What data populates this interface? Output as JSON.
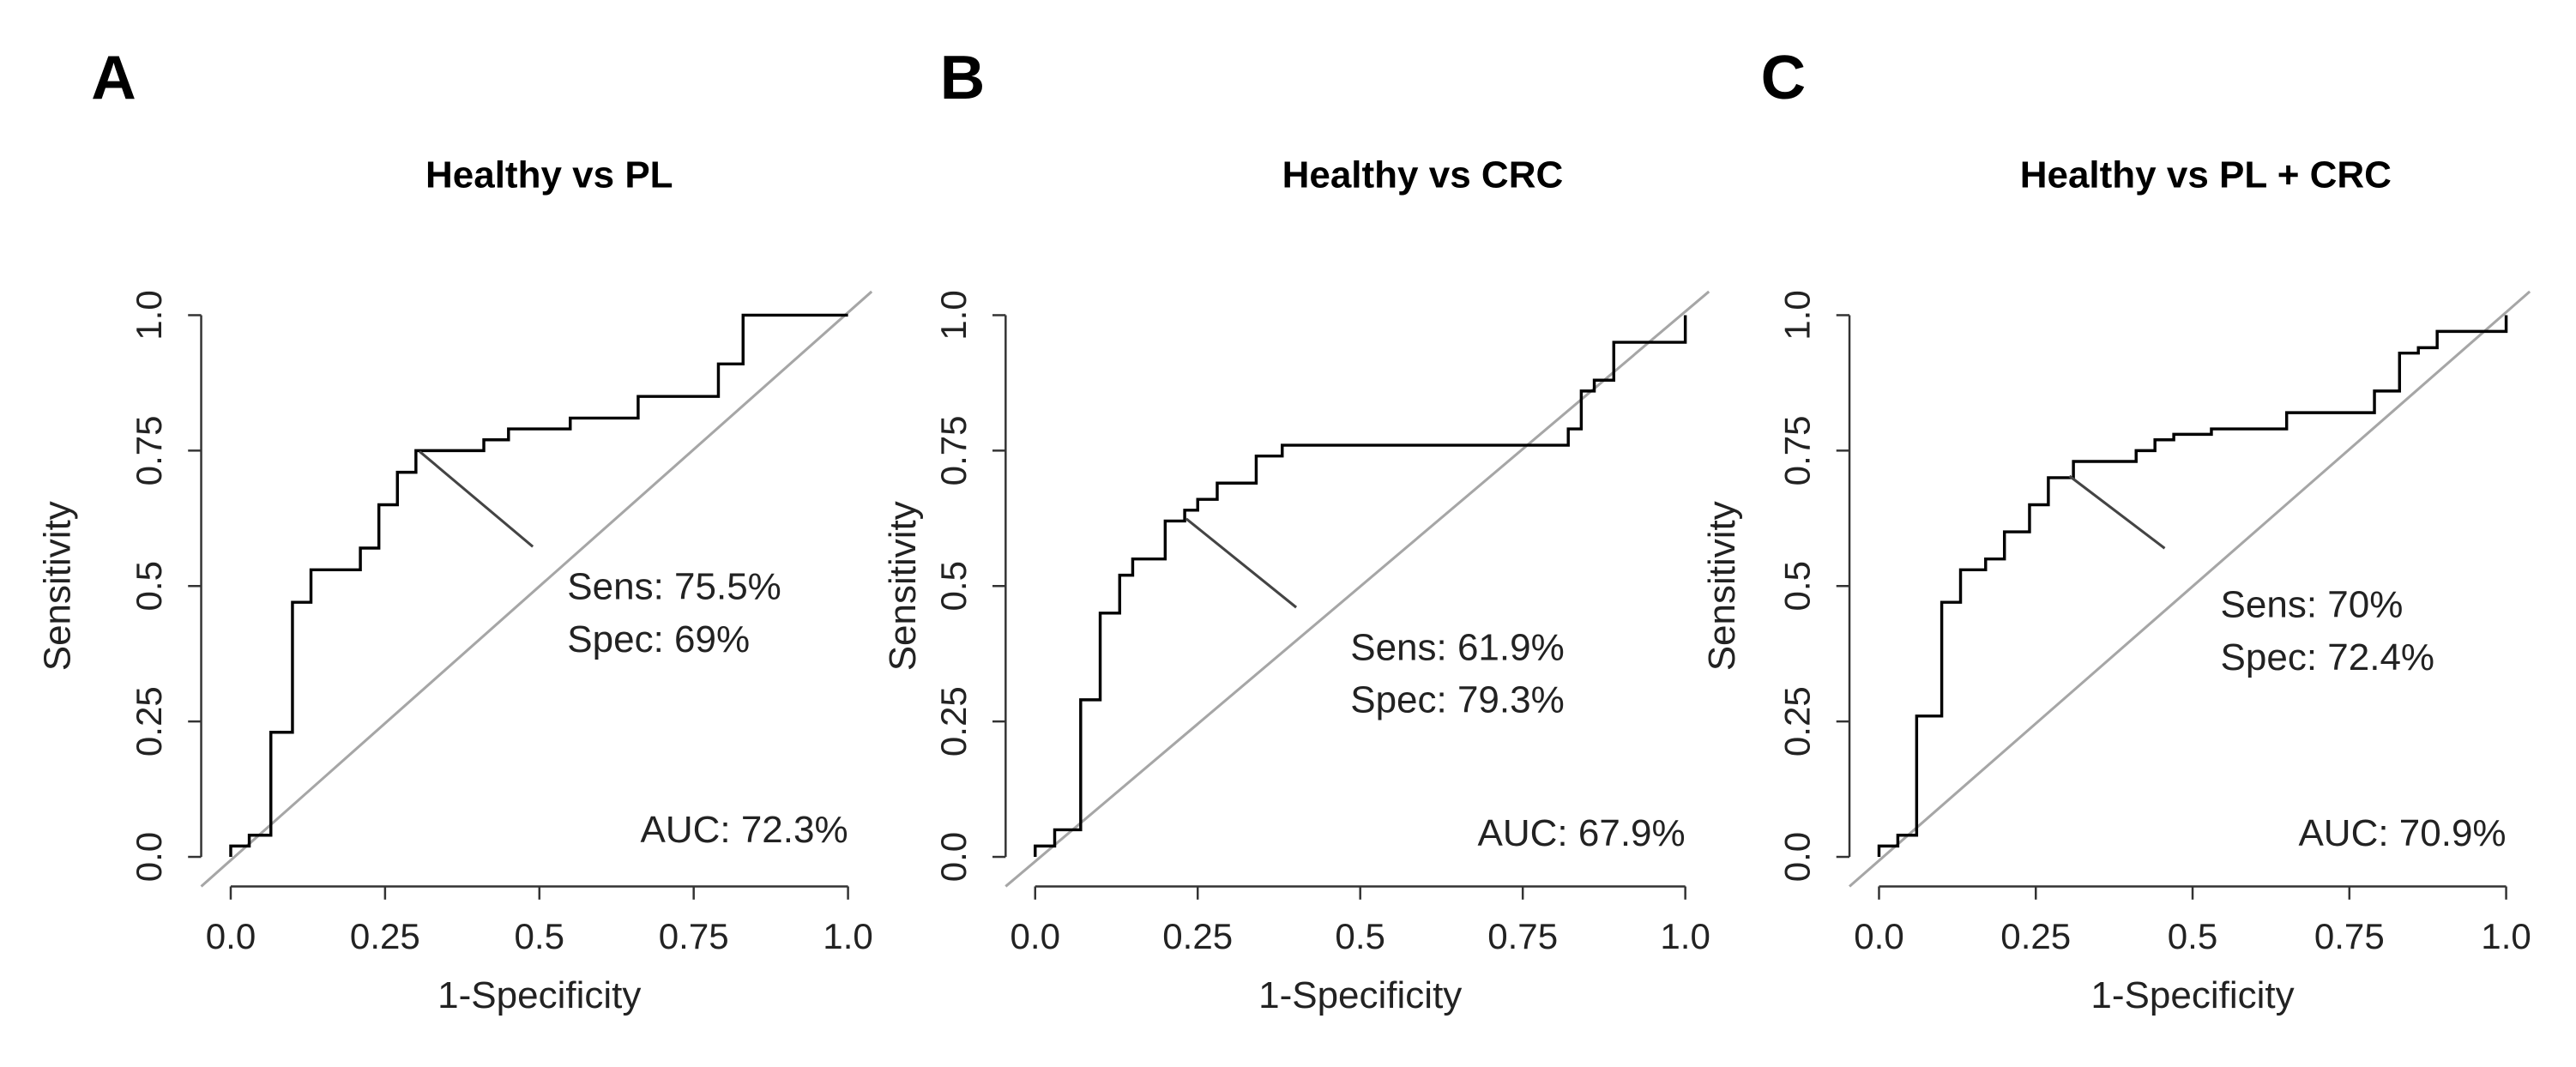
{
  "chart_data": [
    {
      "type": "line",
      "label": "A",
      "title": "Healthy vs PL",
      "xlabel": "1-Specificity",
      "ylabel": "Sensitivity",
      "annotations": [
        "Sens: 75.5%",
        "Spec: 69%",
        "AUC: 72.3%"
      ],
      "x": [
        0,
        0,
        0.03,
        0.03,
        0.065,
        0.065,
        0.1,
        0.1,
        0.13,
        0.13,
        0.21,
        0.21,
        0.24,
        0.24,
        0.27,
        0.27,
        0.3,
        0.3,
        0.41,
        0.41,
        0.45,
        0.45,
        0.55,
        0.55,
        0.66,
        0.66,
        0.79,
        0.79,
        0.83,
        0.83,
        1
      ],
      "values": [
        0,
        0.02,
        0.02,
        0.04,
        0.04,
        0.23,
        0.23,
        0.47,
        0.47,
        0.53,
        0.53,
        0.57,
        0.57,
        0.65,
        0.65,
        0.71,
        0.71,
        0.75,
        0.75,
        0.77,
        0.77,
        0.79,
        0.79,
        0.81,
        0.81,
        0.85,
        0.85,
        0.91,
        0.91,
        1,
        1
      ],
      "color": "#000000",
      "reference_color": "#a6a6a6",
      "xlim": [
        0,
        1
      ],
      "ylim": [
        0,
        1
      ],
      "xticks": [
        {
          "value": 0,
          "label": "0.0"
        },
        0.25,
        0.5,
        0.75,
        {
          "value": 1,
          "label": "1.0"
        }
      ],
      "yticks": [
        {
          "value": 0,
          "label": "0.0"
        },
        0.25,
        0.5,
        0.75,
        {
          "value": 1,
          "label": "1.0"
        }
      ]
    },
    {
      "type": "line",
      "label": "B",
      "title": "Healthy vs CRC",
      "xlabel": "1-Specificity",
      "ylabel": "Sensitivity",
      "annotations": [
        "Sens: 61.9%",
        "Spec: 79.3%",
        "AUC: 67.9%"
      ],
      "x": [
        0,
        0,
        0.03,
        0.03,
        0.07,
        0.07,
        0.1,
        0.1,
        0.13,
        0.13,
        0.15,
        0.15,
        0.2,
        0.2,
        0.23,
        0.23,
        0.25,
        0.25,
        0.28,
        0.28,
        0.34,
        0.34,
        0.38,
        0.38,
        0.82,
        0.82,
        0.84,
        0.84,
        0.86,
        0.86,
        0.89,
        0.89,
        1,
        1
      ],
      "values": [
        0,
        0.02,
        0.02,
        0.05,
        0.05,
        0.29,
        0.29,
        0.45,
        0.45,
        0.52,
        0.52,
        0.55,
        0.55,
        0.62,
        0.62,
        0.64,
        0.64,
        0.66,
        0.66,
        0.69,
        0.69,
        0.74,
        0.74,
        0.76,
        0.76,
        0.79,
        0.79,
        0.86,
        0.86,
        0.88,
        0.88,
        0.95,
        0.95,
        1
      ],
      "color": "#000000",
      "reference_color": "#a6a6a6",
      "xlim": [
        0,
        1
      ],
      "ylim": [
        0,
        1
      ],
      "xticks": [
        {
          "value": 0,
          "label": "0.0"
        },
        0.25,
        0.5,
        0.75,
        {
          "value": 1,
          "label": "1.0"
        }
      ],
      "yticks": [
        {
          "value": 0,
          "label": "0.0"
        },
        0.25,
        0.5,
        0.75,
        {
          "value": 1,
          "label": "1.0"
        }
      ]
    },
    {
      "type": "line",
      "label": "C",
      "title": "Healthy vs PL + CRC",
      "xlabel": "1-Specificity",
      "ylabel": "Sensitivity",
      "annotations": [
        "Sens: 70%",
        "Spec: 72.4%",
        "AUC: 70.9%"
      ],
      "x": [
        0,
        0,
        0.03,
        0.03,
        0.06,
        0.06,
        0.1,
        0.1,
        0.13,
        0.13,
        0.17,
        0.17,
        0.2,
        0.2,
        0.24,
        0.24,
        0.27,
        0.27,
        0.31,
        0.31,
        0.41,
        0.41,
        0.44,
        0.44,
        0.47,
        0.47,
        0.53,
        0.53,
        0.65,
        0.65,
        0.79,
        0.79,
        0.83,
        0.83,
        0.86,
        0.86,
        0.89,
        0.89,
        1,
        1
      ],
      "values": [
        0,
        0.02,
        0.02,
        0.04,
        0.04,
        0.26,
        0.26,
        0.47,
        0.47,
        0.53,
        0.53,
        0.55,
        0.55,
        0.6,
        0.6,
        0.65,
        0.65,
        0.7,
        0.7,
        0.73,
        0.73,
        0.75,
        0.75,
        0.77,
        0.77,
        0.78,
        0.78,
        0.79,
        0.79,
        0.82,
        0.82,
        0.86,
        0.86,
        0.93,
        0.93,
        0.94,
        0.94,
        0.97,
        0.97,
        1
      ],
      "color": "#000000",
      "reference_color": "#a6a6a6",
      "xlim": [
        0,
        1
      ],
      "ylim": [
        0,
        1
      ],
      "xticks": [
        {
          "value": 0,
          "label": "0.0"
        },
        0.25,
        0.5,
        0.75,
        {
          "value": 1,
          "label": "1.0"
        }
      ],
      "yticks": [
        {
          "value": 0,
          "label": "0.0"
        },
        0.25,
        0.5,
        0.75,
        {
          "value": 1,
          "label": "1.0"
        }
      ]
    }
  ]
}
